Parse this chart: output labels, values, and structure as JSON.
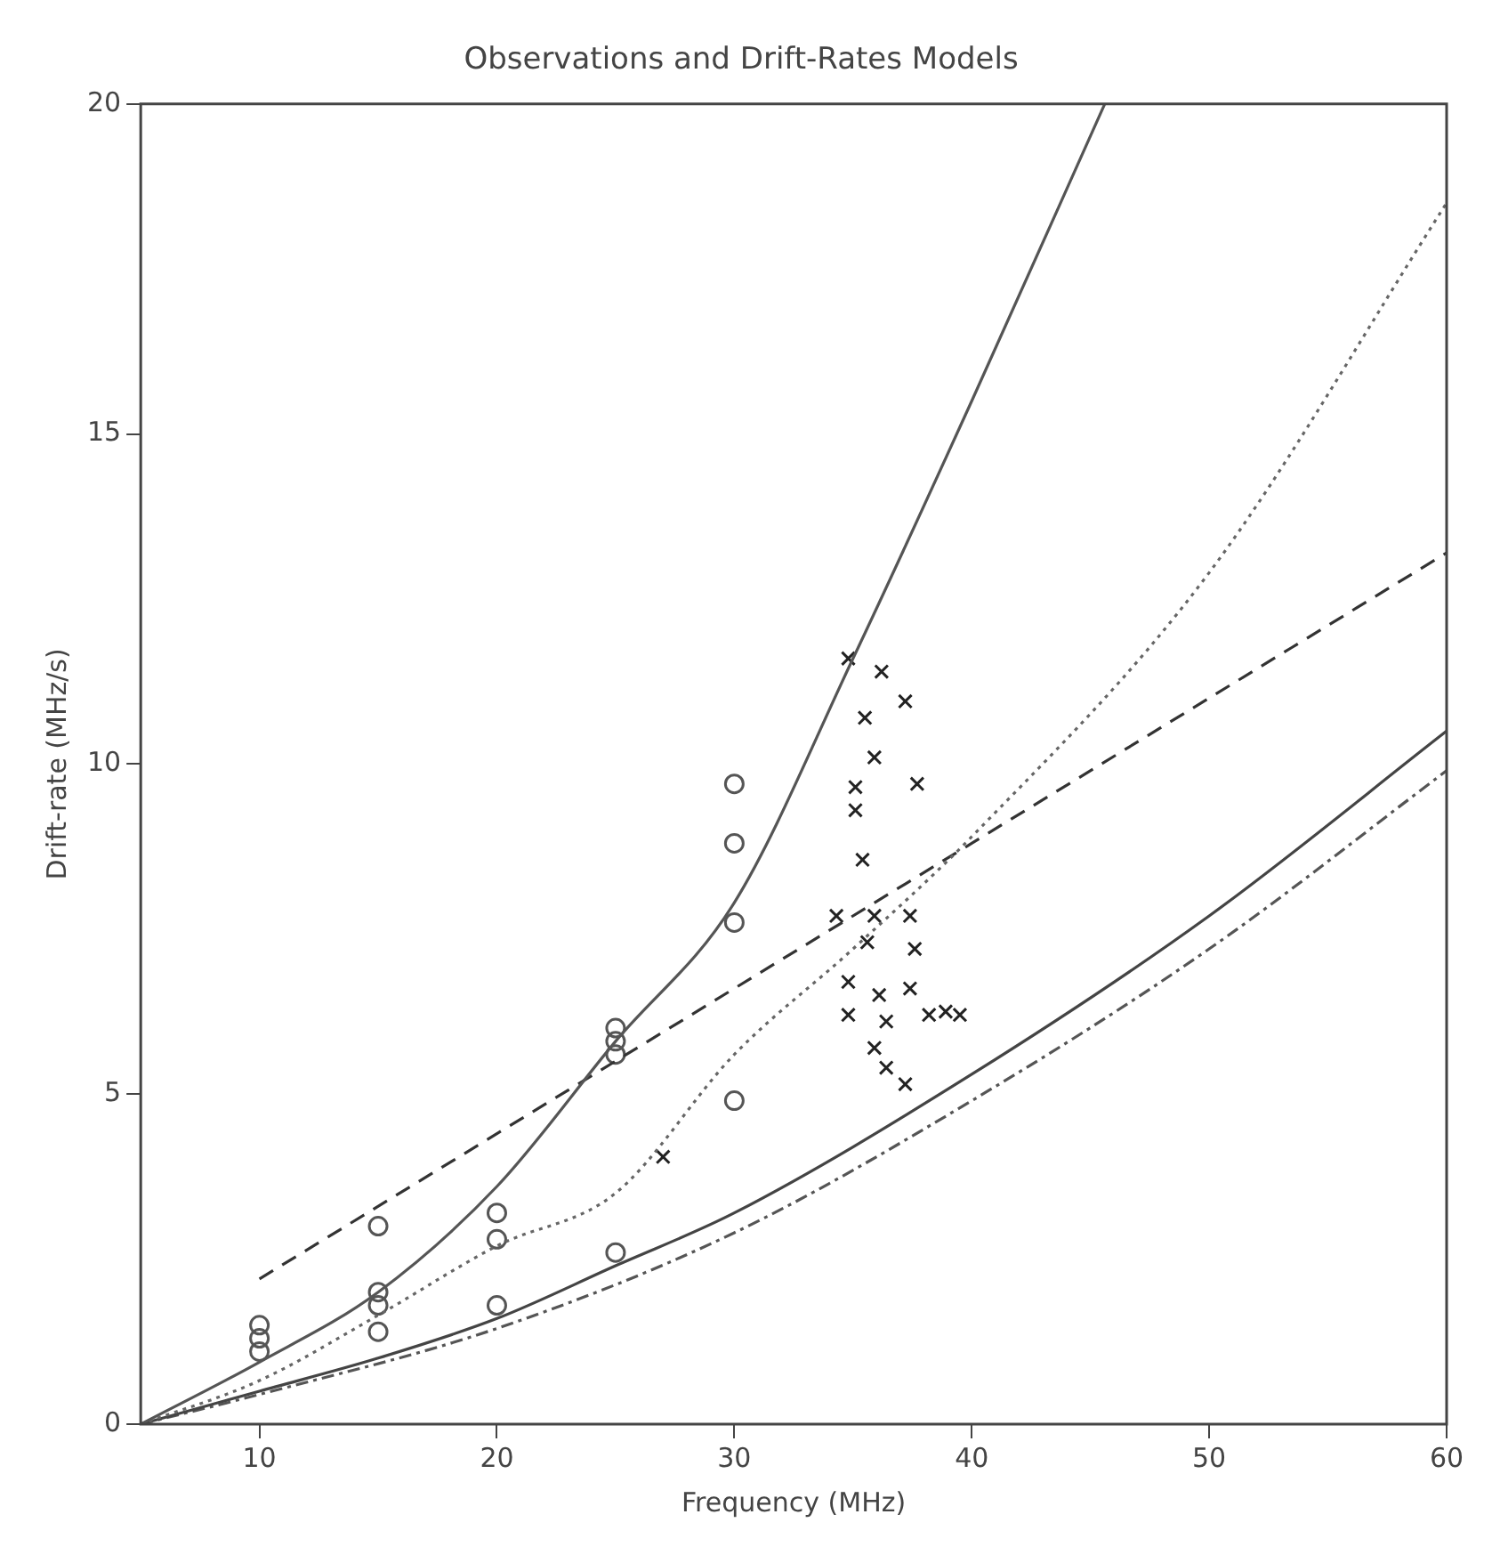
{
  "chart_data": {
    "type": "line",
    "title": "Observations and Drift-Rates Models",
    "xlabel": "Frequency (MHz)",
    "ylabel": "Drift-rate (MHz/s)",
    "xlim": [
      5,
      60
    ],
    "xticks": [
      10,
      20,
      30,
      40,
      50,
      60
    ],
    "ylim": [
      0,
      20
    ],
    "yticks": [
      0,
      5,
      10,
      15,
      20
    ],
    "grid": false,
    "legend": false,
    "series": [
      {
        "color": "#555555",
        "line_style": "solid",
        "marker": "none",
        "x": [
          5,
          10,
          15,
          20,
          25,
          30,
          35,
          40,
          45.6
        ],
        "values": [
          0,
          0.94,
          2.0,
          3.6,
          5.8,
          7.9,
          11.6,
          15.5,
          20
        ]
      },
      {
        "color": "#666666",
        "line_style": "dotted",
        "marker": "none",
        "x": [
          5,
          10,
          15,
          20,
          25,
          30,
          35,
          40,
          50,
          60
        ],
        "values": [
          0,
          0.66,
          1.65,
          2.7,
          3.5,
          5.6,
          7.2,
          8.9,
          12.9,
          18.5
        ]
      },
      {
        "color": "#333333",
        "line_style": "dashed",
        "marker": "none",
        "x": [
          10,
          20,
          30,
          40,
          50,
          60
        ],
        "values": [
          2.2,
          4.4,
          6.6,
          8.8,
          11.0,
          13.2
        ]
      },
      {
        "color": "#444444",
        "line_style": "solid",
        "marker": "none",
        "x": [
          5,
          10,
          15,
          20,
          25,
          30,
          40,
          50,
          60
        ],
        "values": [
          0,
          0.5,
          1.0,
          1.6,
          2.4,
          3.2,
          5.3,
          7.7,
          10.5
        ]
      },
      {
        "color": "#555555",
        "line_style": "dashdot",
        "marker": "none",
        "x": [
          5,
          10,
          20,
          30,
          40,
          50,
          60
        ],
        "values": [
          0,
          0.45,
          1.45,
          2.9,
          4.9,
          7.2,
          9.9
        ]
      },
      {
        "type": "scatter",
        "color": "#555555",
        "marker": "circle",
        "x": [
          10,
          10,
          10,
          15,
          15,
          15,
          15,
          20,
          20,
          20,
          25,
          25,
          25,
          25,
          30,
          30,
          30,
          30
        ],
        "values": [
          1.1,
          1.3,
          1.5,
          3.0,
          2.0,
          1.8,
          1.4,
          3.2,
          2.8,
          1.8,
          6.0,
          5.8,
          5.6,
          2.6,
          9.7,
          8.8,
          7.6,
          4.9
        ]
      },
      {
        "type": "scatter",
        "color": "#222222",
        "marker": "cross",
        "x": [
          27,
          34.8,
          36.2,
          37.2,
          35.5,
          35.9,
          37.7,
          35.1,
          35.1,
          35.4,
          34.3,
          35.9,
          37.4,
          35.6,
          37.6,
          34.8,
          36.1,
          37.4,
          38.9,
          34.8,
          36.4,
          38.2,
          35.9,
          36.4,
          37.2,
          39.5
        ],
        "values": [
          4.05,
          11.6,
          11.4,
          10.95,
          10.7,
          10.1,
          9.7,
          9.65,
          9.3,
          8.55,
          7.7,
          7.7,
          7.7,
          7.3,
          7.2,
          6.7,
          6.5,
          6.6,
          6.25,
          6.2,
          6.1,
          6.2,
          5.7,
          5.4,
          5.15,
          6.2
        ]
      }
    ]
  }
}
